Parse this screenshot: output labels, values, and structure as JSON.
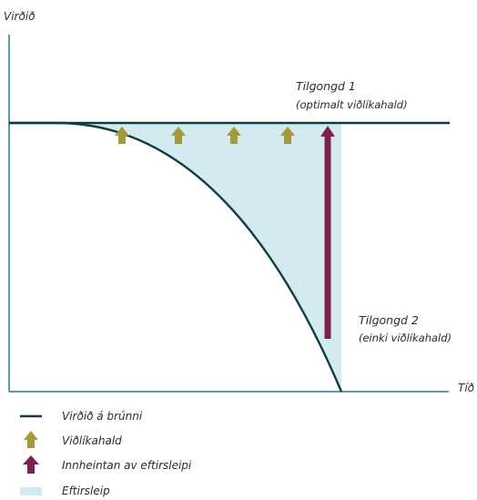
{
  "axes": {
    "y_label": "Virðið",
    "x_label": "Tíð"
  },
  "annotations": {
    "scenario1": {
      "title": "Tilgongd 1",
      "subtitle": "(optimalt viðlíkahald)"
    },
    "scenario2": {
      "title": "Tilgongd 2",
      "subtitle": "(einki viðlíkahald)"
    }
  },
  "legend": [
    {
      "label": "Virðið á brúnni",
      "symbol": "line"
    },
    {
      "label": "Viðlíkahald",
      "symbol": "arrow-olive"
    },
    {
      "label": "Innheintan av eftirsleipi",
      "symbol": "arrow-maroon"
    },
    {
      "label": "Eftirsleip",
      "symbol": "area"
    }
  ],
  "colors": {
    "line": "#0f3d44",
    "axis": "#2a7b86",
    "maintenance_arrow": "#a39a3a",
    "recovery_arrow": "#7b2350",
    "backlog_area": "#d3ebf0"
  },
  "icons": {
    "maintenance": "arrow-up-icon",
    "recovery": "arrow-up-icon"
  }
}
